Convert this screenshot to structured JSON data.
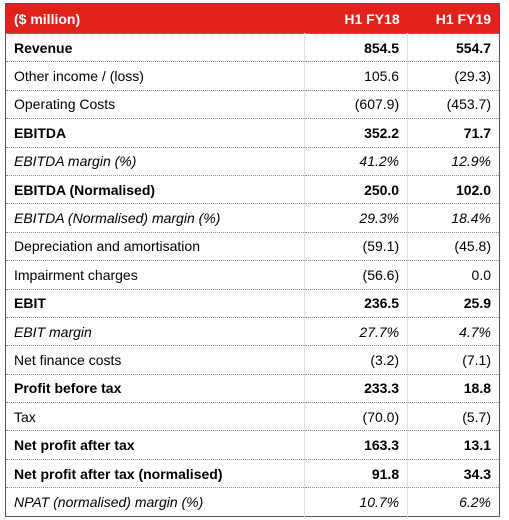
{
  "table": {
    "header": [
      "($ million)",
      "H1 FY18",
      "H1 FY19"
    ],
    "rows": [
      [
        "Revenue",
        "854.5",
        "554.7"
      ],
      [
        "Other income / (loss)",
        "105.6",
        "(29.3)"
      ],
      [
        "Operating Costs",
        "(607.9)",
        "(453.7)"
      ],
      [
        "EBITDA",
        "352.2",
        "71.7"
      ],
      [
        "EBITDA margin (%)",
        "41.2%",
        "12.9%"
      ],
      [
        "EBITDA (Normalised)",
        "250.0",
        "102.0"
      ],
      [
        "EBITDA (Normalised) margin (%)",
        "29.3%",
        "18.4%"
      ],
      [
        "Depreciation and amortisation",
        "(59.1)",
        "(45.8)"
      ],
      [
        "Impairment charges",
        "(56.6)",
        "0.0"
      ],
      [
        "EBIT",
        "236.5",
        "25.9"
      ],
      [
        "EBIT margin",
        "27.7%",
        "4.7%"
      ],
      [
        "Net finance costs",
        "(3.2)",
        "(7.1)"
      ],
      [
        "Profit before tax",
        "233.3",
        "18.8"
      ],
      [
        "Tax",
        "(70.0)",
        "(5.7)"
      ],
      [
        "Net profit after tax",
        "163.3",
        "13.1"
      ],
      [
        "Net profit after tax (normalised)",
        "91.8",
        "34.3"
      ],
      [
        "NPAT (normalised) margin (%)",
        "10.7%",
        "6.2%"
      ]
    ]
  }
}
